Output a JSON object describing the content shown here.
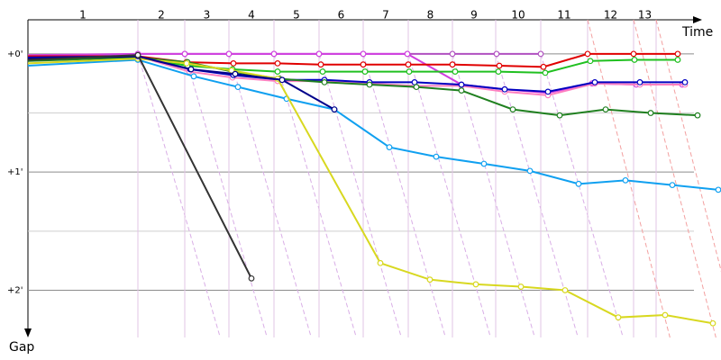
{
  "chart_data": {
    "type": "line",
    "x_label": "Time",
    "y_label": "Gap",
    "xlim": [
      0,
      749
    ],
    "ylim": [
      -0.22,
      2.4
    ],
    "yticks": [
      {
        "value": 0,
        "label": "+0'"
      },
      {
        "value": 1,
        "label": "+1'"
      },
      {
        "value": 2,
        "label": "+2'"
      }
    ],
    "minor_yticks": [
      0.5,
      1.5
    ],
    "stage_labels": [
      "1",
      "2",
      "3",
      "4",
      "5",
      "6",
      "7",
      "8",
      "9",
      "10",
      "11",
      "12",
      "13"
    ],
    "stage_bounds": [
      0,
      122,
      174,
      223,
      273,
      323,
      372,
      422,
      471,
      519,
      569,
      621,
      672,
      697
    ],
    "series": [
      {
        "color": "#b050c0",
        "x": [
          0,
          122,
          174,
          223,
          273,
          323,
          372,
          421,
          471,
          520,
          569
        ],
        "values": [
          0.03,
          0,
          0,
          0,
          0,
          0,
          0,
          0,
          0,
          0,
          0
        ]
      },
      {
        "color": "#d040e0",
        "x": [
          0,
          122,
          174,
          223,
          273,
          323,
          372,
          421,
          481,
          529,
          577,
          626,
          675,
          726
        ],
        "values": [
          0.01,
          0,
          0,
          0,
          0,
          0,
          0,
          0,
          0.26,
          0.3,
          0.33,
          0.25,
          0.26,
          0.26
        ]
      },
      {
        "color": "#ff80c0",
        "x": [
          0,
          122,
          179,
          227,
          277,
          329,
          379,
          429,
          481,
          529,
          577,
          629,
          679,
          729
        ],
        "values": [
          0.04,
          0.02,
          0.15,
          0.2,
          0.23,
          0.23,
          0.25,
          0.27,
          0.27,
          0.32,
          0.35,
          0.25,
          0.26,
          0.26
        ]
      },
      {
        "color": "#e00000",
        "x": [
          0,
          122,
          176,
          228,
          277,
          325,
          372,
          422,
          471,
          523,
          572,
          621,
          672,
          721
        ],
        "values": [
          0.02,
          0.02,
          0.07,
          0.08,
          0.08,
          0.09,
          0.09,
          0.09,
          0.09,
          0.1,
          0.11,
          0,
          0,
          0
        ]
      },
      {
        "color": "#0000c0",
        "x": [
          0,
          122,
          180,
          228,
          282,
          329,
          379,
          429,
          481,
          529,
          577,
          629,
          679,
          729
        ],
        "values": [
          0.03,
          0.02,
          0.13,
          0.18,
          0.22,
          0.22,
          0.24,
          0.24,
          0.26,
          0.3,
          0.32,
          0.24,
          0.24,
          0.24
        ]
      },
      {
        "color": "#20c020",
        "x": [
          0,
          122,
          177,
          227,
          277,
          327,
          374,
          423,
          474,
          522,
          574,
          624,
          673,
          721
        ],
        "values": [
          0.05,
          0.03,
          0.1,
          0.13,
          0.15,
          0.15,
          0.15,
          0.15,
          0.15,
          0.15,
          0.16,
          0.06,
          0.05,
          0.05
        ]
      },
      {
        "color": "#208020",
        "x": [
          0,
          122,
          177,
          227,
          279,
          329,
          379,
          431,
          481,
          538,
          590,
          641,
          691,
          743
        ],
        "values": [
          0.06,
          0.03,
          0.07,
          0.15,
          0.21,
          0.24,
          0.26,
          0.28,
          0.31,
          0.47,
          0.52,
          0.47,
          0.5,
          0.52
        ]
      },
      {
        "color": "#10a0f0",
        "x": [
          0,
          122,
          184,
          233,
          287,
          340,
          401,
          453,
          506,
          557,
          611,
          663,
          715,
          766
        ],
        "values": [
          0.1,
          0.05,
          0.19,
          0.28,
          0.38,
          0.47,
          0.79,
          0.87,
          0.93,
          0.99,
          1.1,
          1.07,
          1.11,
          1.15
        ]
      },
      {
        "color": "#d8d820",
        "x": [
          0,
          122,
          176,
          226,
          277,
          391,
          446,
          497,
          547,
          596,
          655,
          707,
          760
        ],
        "values": [
          0.08,
          0.04,
          0.08,
          0.14,
          0.21,
          1.77,
          1.91,
          1.95,
          1.97,
          2,
          2.23,
          2.21,
          2.28
        ]
      },
      {
        "color": "#00008b",
        "x": [
          0,
          122,
          181,
          230,
          282,
          340
        ],
        "values": [
          0.04,
          0.02,
          0.13,
          0.17,
          0.22,
          0.47
        ]
      },
      {
        "color": "#333333",
        "x": [
          0,
          122,
          248
        ],
        "values": [
          0.05,
          0.01,
          1.9
        ]
      }
    ]
  }
}
